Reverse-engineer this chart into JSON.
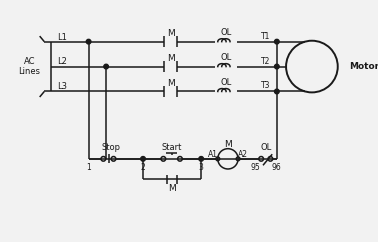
{
  "bg_color": "#f2f2f2",
  "line_color": "#1a1a1a",
  "ac_lines_label": "AC\nLines",
  "motor_label": "Motor",
  "stop_label": "Stop",
  "start_label": "Start",
  "m_label": "M",
  "ol_label": "OL",
  "a1_label": "A1",
  "a2_label": "A2",
  "num_labels": [
    "1",
    "2",
    "3",
    "95",
    "96"
  ],
  "t_labels": [
    "T1",
    "T2",
    "T3"
  ],
  "l_labels": [
    "L1",
    "L2",
    "L3"
  ]
}
